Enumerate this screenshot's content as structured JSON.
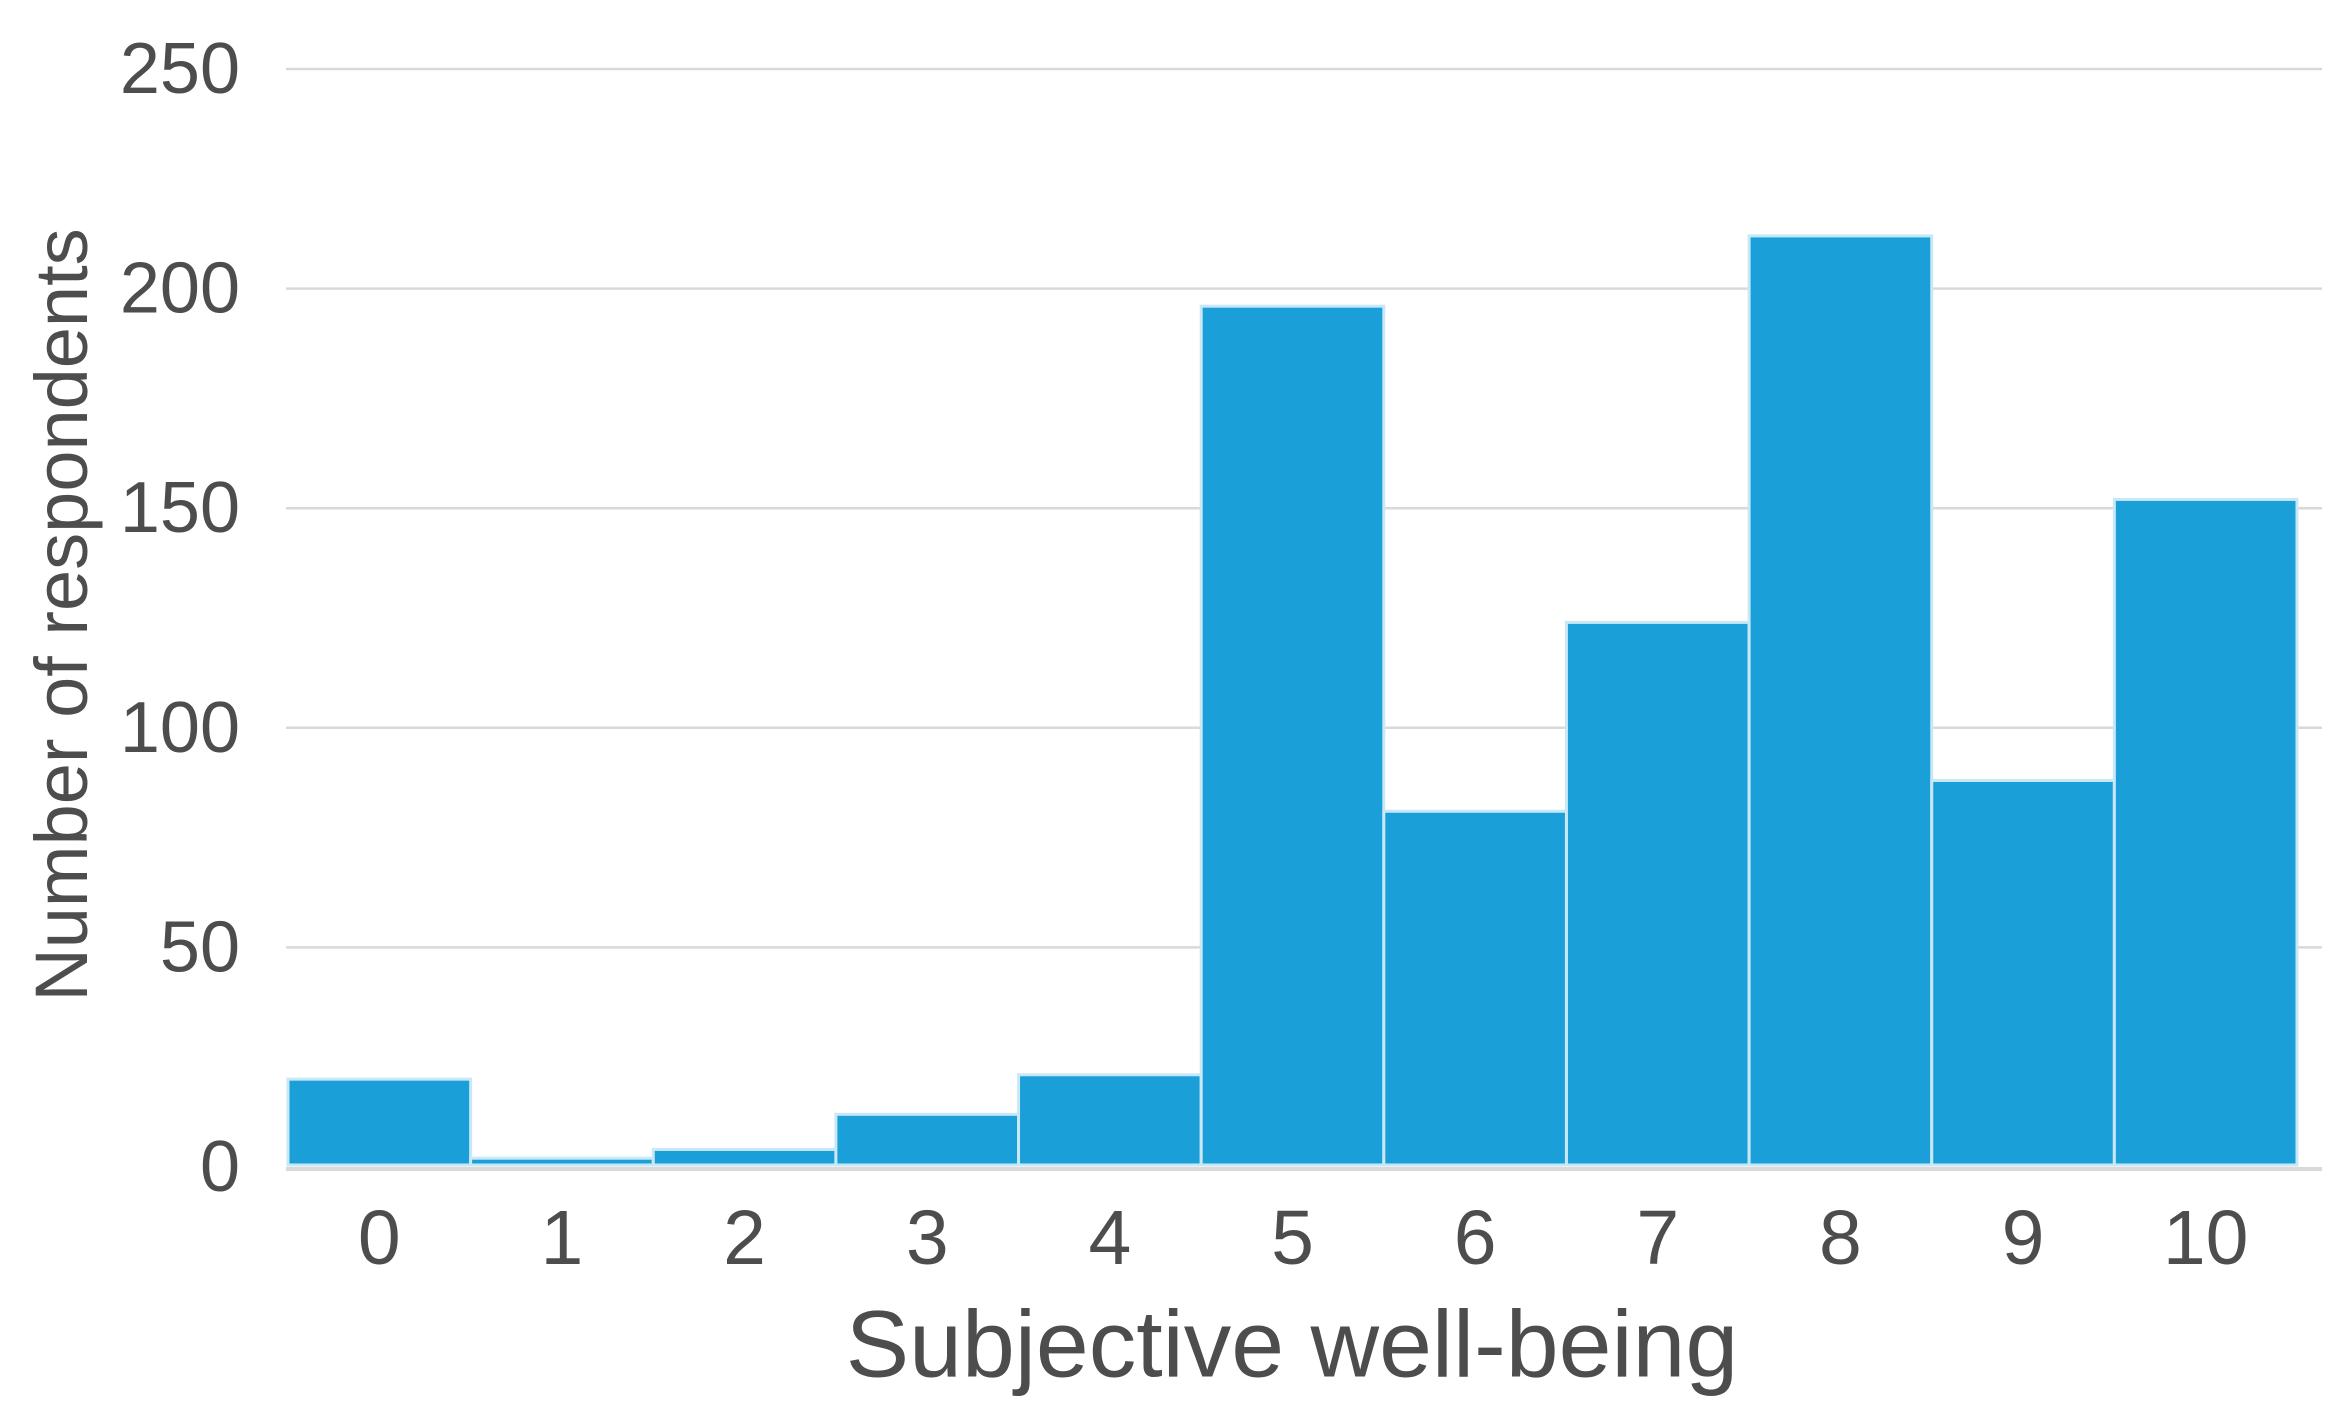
{
  "chart_data": {
    "type": "bar",
    "title": "",
    "categories": [
      "0",
      "1",
      "2",
      "3",
      "4",
      "5",
      "6",
      "7",
      "8",
      "9",
      "10"
    ],
    "values": [
      20,
      2,
      4,
      12,
      21,
      196,
      81,
      124,
      212,
      88,
      152
    ],
    "xlabel": "Subjective well-being",
    "ylabel": "Number of respondents",
    "ylim": [
      0,
      250
    ],
    "yticks": [
      0,
      50,
      100,
      150,
      200,
      250
    ],
    "grid": "horizontal",
    "legend": "none",
    "bar_gap": 0,
    "colors": {
      "bar_fill": "#1A9FD9",
      "bar_edge": "#C9E8F6",
      "gridline": "#D9D9D9",
      "axis_text": "#4D4D4D",
      "background": "#FFFFFF"
    }
  }
}
